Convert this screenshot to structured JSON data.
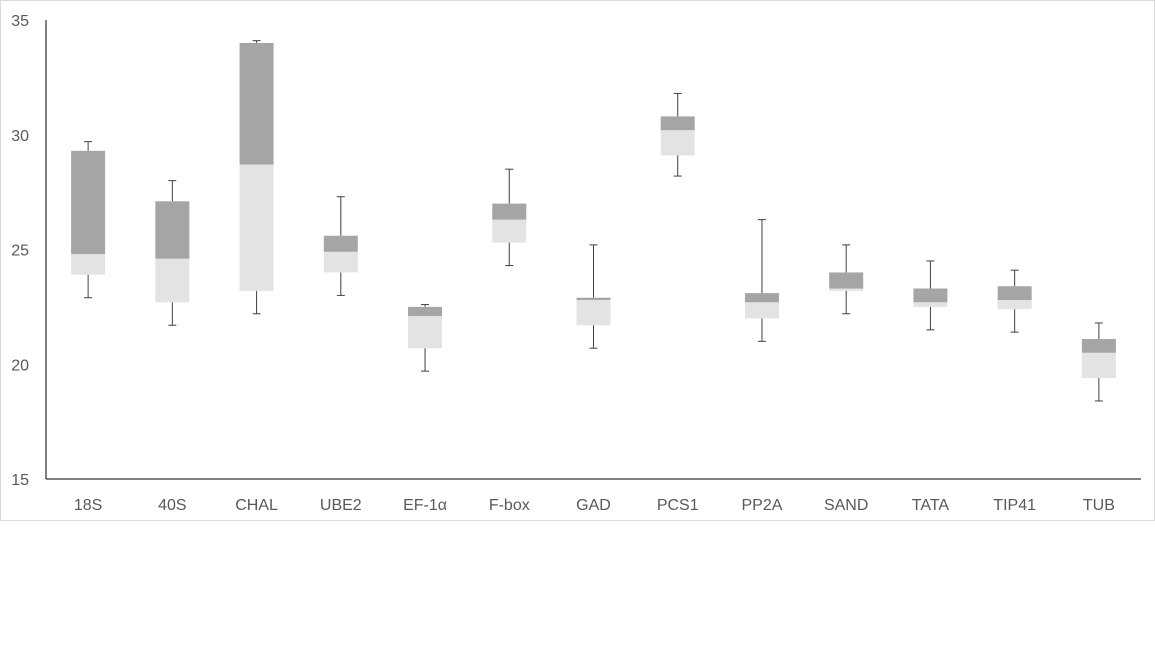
{
  "chart_data": {
    "type": "box",
    "title": "",
    "xlabel": "",
    "ylabel": "",
    "ylim": [
      15,
      35
    ],
    "yticks": [
      15,
      20,
      25,
      30,
      35
    ],
    "grid": false,
    "legend": "none",
    "categories": [
      "18S",
      "40S",
      "CHAL",
      "UBE2",
      "EF-1α",
      "F-box",
      "GAD",
      "PCS1",
      "PP2A",
      "SAND",
      "TATA",
      "TIP41",
      "TUB"
    ],
    "boxes": [
      {
        "min": 22.9,
        "q1": 23.9,
        "median": 24.8,
        "q3": 29.3,
        "max": 29.7
      },
      {
        "min": 21.7,
        "q1": 22.7,
        "median": 24.6,
        "q3": 27.1,
        "max": 28.0
      },
      {
        "min": 22.2,
        "q1": 23.2,
        "median": 28.7,
        "q3": 34.0,
        "max": 34.1
      },
      {
        "min": 23.0,
        "q1": 24.0,
        "median": 24.9,
        "q3": 25.6,
        "max": 27.3
      },
      {
        "min": 19.7,
        "q1": 20.7,
        "median": 22.1,
        "q3": 22.5,
        "max": 22.6
      },
      {
        "min": 24.3,
        "q1": 25.3,
        "median": 26.3,
        "q3": 27.0,
        "max": 28.5
      },
      {
        "min": 20.7,
        "q1": 21.7,
        "median": 22.8,
        "q3": 22.9,
        "max": 25.2
      },
      {
        "min": 28.2,
        "q1": 29.1,
        "median": 30.2,
        "q3": 30.8,
        "max": 31.8
      },
      {
        "min": 21.0,
        "q1": 22.0,
        "median": 22.7,
        "q3": 23.1,
        "max": 26.3
      },
      {
        "min": 22.2,
        "q1": 23.2,
        "median": 23.3,
        "q3": 24.0,
        "max": 25.2
      },
      {
        "min": 21.5,
        "q1": 22.5,
        "median": 22.7,
        "q3": 23.3,
        "max": 24.5
      },
      {
        "min": 21.4,
        "q1": 22.4,
        "median": 22.8,
        "q3": 23.4,
        "max": 24.1
      },
      {
        "min": 18.4,
        "q1": 19.4,
        "median": 20.5,
        "q3": 21.1,
        "max": 21.8
      }
    ],
    "colors": {
      "lower_box": "#e3e3e3",
      "upper_box": "#a5a5a5",
      "whisker": "#404040",
      "axis": "#000000",
      "label": "#595959"
    }
  }
}
